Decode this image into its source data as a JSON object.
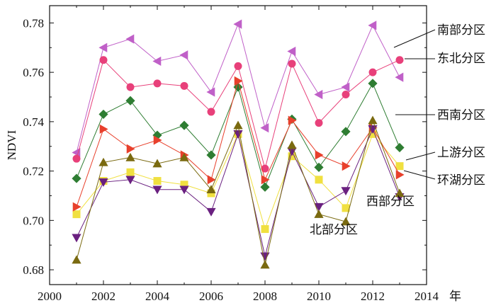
{
  "chart_data": {
    "type": "line",
    "xlabel": "年",
    "ylabel": "NDVI",
    "xlim": [
      2000,
      2014
    ],
    "ylim": [
      0.674,
      0.787
    ],
    "xticks": [
      2000,
      2002,
      2004,
      2006,
      2008,
      2010,
      2012,
      2014
    ],
    "yticks": [
      0.68,
      0.7,
      0.72,
      0.74,
      0.76,
      0.78
    ],
    "x": [
      2001,
      2002,
      2003,
      2004,
      2005,
      2006,
      2007,
      2008,
      2009,
      2010,
      2011,
      2012,
      2013
    ],
    "series": [
      {
        "name": "南部分区",
        "color": "#c060c8",
        "marker": "triangle-left",
        "values": [
          0.7275,
          0.77,
          0.7735,
          0.7645,
          0.767,
          0.752,
          0.7795,
          0.7375,
          0.7685,
          0.751,
          0.754,
          0.779,
          0.758
        ]
      },
      {
        "name": "东北分区",
        "color": "#e8407a",
        "marker": "circle",
        "values": [
          0.725,
          0.765,
          0.754,
          0.7555,
          0.7545,
          0.744,
          0.7625,
          0.721,
          0.7635,
          0.7395,
          0.751,
          0.76,
          0.765
        ]
      },
      {
        "name": "西南分区",
        "color": "#2e7d32",
        "marker": "diamond",
        "values": [
          0.717,
          0.743,
          0.7485,
          0.7345,
          0.7385,
          0.7265,
          0.754,
          0.7135,
          0.741,
          0.7215,
          0.736,
          0.7555,
          0.7295
        ]
      },
      {
        "name": "上游分区",
        "color": "#f0e040",
        "marker": "square",
        "values": [
          0.7025,
          0.716,
          0.7195,
          0.716,
          0.7145,
          0.711,
          0.735,
          0.6965,
          0.726,
          0.7165,
          0.705,
          0.735,
          0.722
        ]
      },
      {
        "name": "环湖分区",
        "color": "#e8402c",
        "marker": "triangle-right",
        "values": [
          0.7055,
          0.737,
          0.729,
          0.7325,
          0.7265,
          0.7165,
          0.7565,
          0.7165,
          0.7405,
          0.7265,
          0.722,
          0.7375,
          0.7185
        ]
      },
      {
        "name": "西部分区",
        "color": "#6a2080",
        "marker": "triangle-down",
        "values": [
          0.693,
          0.7155,
          0.7165,
          0.7125,
          0.7125,
          0.7035,
          0.735,
          0.6855,
          0.728,
          0.7055,
          0.712,
          0.737,
          0.7095
        ]
      },
      {
        "name": "北部分区",
        "color": "#7a6a10",
        "marker": "triangle-up",
        "values": [
          0.684,
          0.7235,
          0.7255,
          0.723,
          0.7255,
          0.7125,
          0.7385,
          0.682,
          0.7305,
          0.7025,
          0.6995,
          0.7405,
          0.711
        ]
      }
    ]
  }
}
